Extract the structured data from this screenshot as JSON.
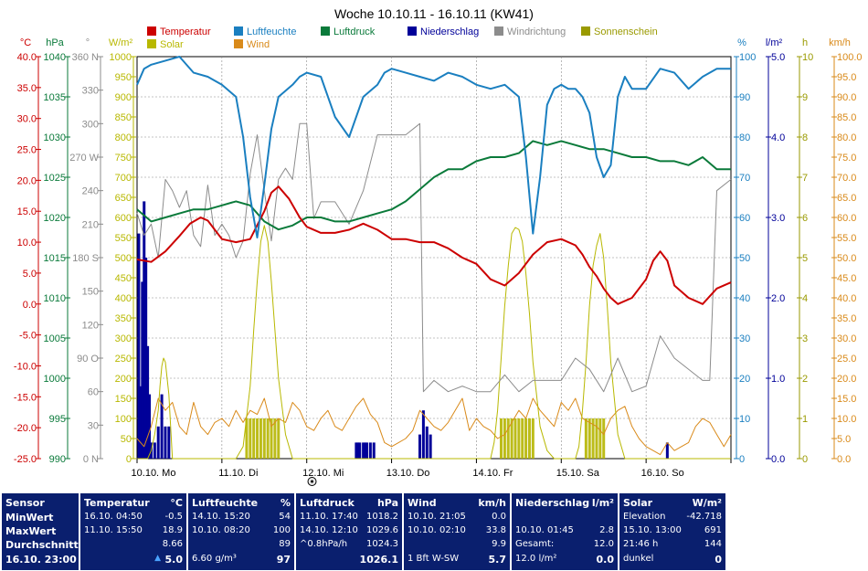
{
  "chart_data": {
    "type": "line",
    "title": "Woche 10.10.11 - 16.10.11 (KW41)",
    "x_ticks": [
      "10.10. Mo",
      "11.10. Di",
      "12.10. Mi",
      "13.10. Do",
      "14.10. Fr",
      "15.10. Sa",
      "16.10. So"
    ],
    "x_range_hours": [
      0,
      168
    ],
    "legend": [
      {
        "name": "Temperatur",
        "color": "#cc0000"
      },
      {
        "name": "Luftfeuchte",
        "color": "#1a7fc0"
      },
      {
        "name": "Luftdruck",
        "color": "#0a7a3a"
      },
      {
        "name": "Niederschlag",
        "color": "#000099"
      },
      {
        "name": "Windrichtung",
        "color": "#8c8c8c"
      },
      {
        "name": "Sonnenschein",
        "color": "#9a9a00"
      },
      {
        "name": "Solar",
        "color": "#b8b800"
      },
      {
        "name": "Wind",
        "color": "#d98a1a"
      }
    ],
    "axes": {
      "temp": {
        "unit": "°C",
        "range": [
          -25,
          40
        ],
        "ticks": [
          "40.0",
          "35.0",
          "30.0",
          "25.0",
          "20.0",
          "15.0",
          "10.0",
          "5.0",
          "0.0",
          "-5.0",
          "-10.0",
          "-15.0",
          "-20.0",
          "-25.0"
        ],
        "color": "#cc0000"
      },
      "pressure": {
        "unit": "hPa",
        "range": [
          990,
          1040
        ],
        "ticks": [
          "1040",
          "1035",
          "1030",
          "1025",
          "1020",
          "1015",
          "1010",
          "1005",
          "1000",
          "995",
          "990"
        ],
        "color": "#0a7a3a"
      },
      "direction": {
        "unit": "°",
        "range": [
          0,
          360
        ],
        "ticks": [
          "360 N",
          "330",
          "300",
          "270 W",
          "240",
          "210",
          "180 S",
          "150",
          "120",
          "90 O",
          "60",
          "30",
          "0 N"
        ],
        "color": "#8c8c8c"
      },
      "solar": {
        "unit": "W/m²",
        "range": [
          0,
          1000
        ],
        "ticks": [
          "1000",
          "950",
          "900",
          "850",
          "800",
          "750",
          "700",
          "650",
          "600",
          "550",
          "500",
          "450",
          "400",
          "350",
          "300",
          "250",
          "200",
          "150",
          "100",
          "50",
          "0"
        ],
        "color": "#b8b800"
      },
      "humidity": {
        "unit": "%",
        "range": [
          0,
          100
        ],
        "ticks": [
          "100",
          "90",
          "80",
          "70",
          "60",
          "50",
          "40",
          "30",
          "20",
          "10",
          "0"
        ],
        "color": "#1a7fc0"
      },
      "rain": {
        "unit": "l/m²",
        "range": [
          0,
          5
        ],
        "ticks": [
          "5.0",
          "4.0",
          "3.0",
          "2.0",
          "1.0",
          "0.0"
        ],
        "color": "#000099"
      },
      "sunshine": {
        "unit": "h",
        "range": [
          0,
          10
        ],
        "ticks": [
          "10",
          "9",
          "8",
          "7",
          "6",
          "5",
          "4",
          "3",
          "2",
          "1",
          "0"
        ],
        "color": "#9a9a00"
      },
      "wind": {
        "unit": "km/h",
        "range": [
          0,
          100
        ],
        "ticks": [
          "100.0",
          "95.0",
          "90.0",
          "85.0",
          "80.0",
          "75.0",
          "70.0",
          "65.0",
          "60.0",
          "55.0",
          "50.0",
          "45.0",
          "40.0",
          "35.0",
          "30.0",
          "25.0",
          "20.0",
          "15.0",
          "10.0",
          "5.0",
          "0.0"
        ],
        "color": "#d98a1a"
      }
    },
    "series": [
      {
        "name": "Temperatur",
        "axis": "temp",
        "x": [
          0,
          4,
          8,
          12,
          15,
          18,
          20,
          22,
          24,
          28,
          32,
          36,
          38,
          40,
          43,
          46,
          48,
          52,
          56,
          60,
          64,
          68,
          72,
          76,
          80,
          84,
          88,
          92,
          96,
          100,
          104,
          108,
          112,
          116,
          120,
          124,
          126,
          128,
          130,
          132,
          134,
          136,
          140,
          144,
          146,
          148,
          150,
          152,
          156,
          160,
          164,
          168
        ],
        "y": [
          7.2,
          6.8,
          8.5,
          11,
          13,
          14,
          13.5,
          12,
          10.5,
          10,
          10.5,
          15,
          18,
          19,
          17,
          14,
          12.5,
          11.5,
          11.5,
          12,
          13,
          12,
          10.5,
          10.5,
          10,
          10,
          9,
          7.5,
          6.5,
          4,
          3,
          5,
          8,
          10,
          10.5,
          9.5,
          8,
          6,
          4.5,
          2.5,
          1,
          0,
          1,
          4,
          7,
          8.5,
          7,
          3,
          1,
          0,
          2.5,
          3.5
        ]
      },
      {
        "name": "Luftfeuchte",
        "axis": "humidity",
        "x": [
          0,
          2,
          4,
          8,
          12,
          16,
          20,
          24,
          28,
          30,
          32,
          34,
          36,
          38,
          40,
          44,
          46,
          48,
          52,
          56,
          60,
          64,
          68,
          70,
          72,
          76,
          80,
          84,
          88,
          92,
          96,
          100,
          104,
          108,
          110,
          112,
          114,
          116,
          118,
          120,
          122,
          124,
          126,
          128,
          130,
          132,
          134,
          136,
          138,
          140,
          144,
          148,
          152,
          156,
          160,
          164,
          168
        ],
        "y": [
          93,
          97,
          98,
          99,
          100,
          96,
          95,
          93,
          90,
          80,
          65,
          55,
          68,
          82,
          90,
          93,
          95,
          96,
          95,
          85,
          80,
          90,
          93,
          96,
          97,
          96,
          95,
          94,
          96,
          95,
          93,
          92,
          93,
          90,
          75,
          56,
          70,
          88,
          92,
          93,
          92,
          92,
          90,
          86,
          75,
          70,
          73,
          90,
          95,
          92,
          92,
          97,
          96,
          92,
          95,
          97,
          97
        ]
      },
      {
        "name": "Luftdruck",
        "axis": "pressure",
        "x": [
          0,
          4,
          8,
          12,
          16,
          20,
          24,
          28,
          32,
          36,
          40,
          44,
          48,
          52,
          56,
          60,
          64,
          68,
          72,
          76,
          80,
          84,
          88,
          92,
          96,
          100,
          104,
          108,
          112,
          116,
          120,
          124,
          128,
          132,
          136,
          140,
          144,
          148,
          152,
          156,
          160,
          164,
          168
        ],
        "y": [
          1021,
          1019.5,
          1020,
          1020.5,
          1021,
          1021,
          1021.5,
          1022,
          1021.5,
          1019.5,
          1018.5,
          1019,
          1020,
          1020,
          1019.5,
          1019.5,
          1020,
          1020.5,
          1021,
          1022,
          1023.5,
          1025,
          1026,
          1026,
          1027,
          1027.5,
          1027.5,
          1028,
          1029.5,
          1029,
          1029.5,
          1029,
          1028.5,
          1028.5,
          1028,
          1027.5,
          1027.5,
          1027,
          1027,
          1026.5,
          1027.5,
          1026,
          1026
        ]
      },
      {
        "name": "Windrichtung",
        "axis": "direction",
        "x": [
          0,
          2,
          4,
          6,
          8,
          10,
          12,
          14,
          16,
          18,
          20,
          22,
          24,
          26,
          28,
          30,
          32,
          34,
          36,
          38,
          40,
          42,
          44,
          46,
          48,
          50,
          52,
          56,
          60,
          64,
          68,
          72,
          76,
          80,
          81,
          84,
          88,
          92,
          96,
          100,
          104,
          108,
          112,
          116,
          120,
          122,
          124,
          128,
          132,
          136,
          140,
          144,
          148,
          152,
          160,
          162,
          164,
          168
        ],
        "y": [
          220,
          200,
          210,
          180,
          250,
          240,
          225,
          240,
          200,
          190,
          245,
          200,
          210,
          200,
          180,
          195,
          255,
          290,
          240,
          195,
          250,
          260,
          250,
          300,
          300,
          215,
          230,
          230,
          210,
          240,
          290,
          290,
          290,
          300,
          60,
          70,
          60,
          65,
          60,
          60,
          75,
          60,
          70,
          70,
          70,
          80,
          90,
          80,
          60,
          90,
          60,
          65,
          110,
          90,
          70,
          70,
          240,
          250
        ]
      },
      {
        "name": "Solar",
        "axis": "solar",
        "x": [
          0,
          3,
          4,
          5,
          6,
          6.5,
          7,
          7.5,
          8,
          9,
          10,
          28,
          30,
          32,
          33,
          34,
          35,
          36,
          37,
          38,
          39,
          40,
          42,
          44,
          46,
          52,
          54,
          100,
          101,
          102,
          103,
          104,
          105,
          106,
          107,
          108,
          109,
          110,
          111,
          112,
          114,
          116,
          118,
          124,
          125,
          126,
          127,
          128,
          129,
          130,
          131,
          132,
          133,
          134,
          136,
          138,
          168
        ],
        "y": [
          0,
          0,
          20,
          60,
          120,
          180,
          230,
          250,
          240,
          160,
          0,
          0,
          30,
          180,
          320,
          440,
          540,
          580,
          540,
          440,
          320,
          200,
          60,
          0,
          0,
          0,
          0,
          0,
          40,
          120,
          250,
          380,
          480,
          560,
          575,
          570,
          540,
          460,
          360,
          240,
          80,
          20,
          0,
          0,
          30,
          120,
          240,
          380,
          480,
          530,
          560,
          500,
          380,
          240,
          60,
          0,
          0
        ]
      },
      {
        "name": "Wind",
        "axis": "wind",
        "x": [
          0,
          2,
          4,
          6,
          8,
          10,
          12,
          14,
          16,
          18,
          20,
          22,
          24,
          26,
          28,
          30,
          32,
          34,
          36,
          38,
          40,
          42,
          44,
          46,
          48,
          50,
          52,
          54,
          56,
          58,
          60,
          62,
          64,
          66,
          68,
          70,
          72,
          74,
          76,
          78,
          80,
          82,
          84,
          86,
          88,
          90,
          92,
          94,
          96,
          98,
          100,
          102,
          104,
          106,
          108,
          110,
          112,
          114,
          116,
          118,
          120,
          122,
          124,
          126,
          128,
          130,
          132,
          134,
          136,
          138,
          140,
          142,
          144,
          146,
          148,
          150,
          152,
          154,
          156,
          158,
          160,
          162,
          164,
          166,
          168
        ],
        "y": [
          5,
          3,
          8,
          15,
          12,
          14,
          8,
          6,
          14,
          8,
          6,
          9,
          10,
          8,
          12,
          9,
          12,
          11,
          15,
          8,
          10,
          9,
          14,
          12,
          8,
          7,
          10,
          12,
          8,
          7,
          10,
          13,
          15,
          11,
          9,
          4,
          3,
          4,
          5,
          7,
          12,
          10,
          8,
          7,
          9,
          12,
          15,
          7,
          10,
          8,
          7,
          5,
          6,
          9,
          12,
          10,
          15,
          12,
          10,
          8,
          14,
          12,
          15,
          10,
          9,
          8,
          6,
          10,
          12,
          13,
          8,
          5,
          3,
          2,
          1,
          4,
          2,
          3,
          4,
          8,
          10,
          9,
          6,
          3,
          6
        ]
      },
      {
        "name": "Niederschlag",
        "axis": "rain",
        "x": [
          0.5,
          1,
          1.5,
          2,
          2.5,
          3,
          3.5,
          4,
          5,
          6,
          7,
          8,
          9,
          62,
          62.5,
          63,
          64,
          64.5,
          65,
          66,
          67,
          80,
          81,
          82,
          83,
          150
        ],
        "y": [
          2.8,
          0.9,
          2.2,
          3.2,
          2.5,
          1.4,
          0.8,
          0.2,
          0.2,
          0.4,
          0.8,
          0.4,
          0.4,
          0.2,
          0.2,
          0.2,
          0.2,
          0.2,
          0.2,
          0.2,
          0.2,
          0.3,
          0.6,
          0.4,
          0.3,
          0.2
        ]
      },
      {
        "name": "Sonnenschein",
        "axis": "sunshine",
        "x": [
          31,
          32,
          33,
          34,
          35,
          36,
          37,
          38,
          39,
          40,
          103,
          104,
          105,
          106,
          107,
          108,
          109,
          110,
          111,
          112,
          127,
          128,
          129,
          130,
          131,
          132
        ],
        "y": [
          1,
          1,
          1,
          1,
          1,
          1,
          1,
          1,
          1,
          1,
          1,
          1,
          1,
          1,
          1,
          1,
          1,
          1,
          1,
          1,
          1,
          1,
          1,
          1,
          1,
          1
        ]
      }
    ]
  },
  "stats": {
    "sensor": {
      "header": "Sensor",
      "min_label": "MinWert",
      "max_label": "MaxWert",
      "avg_label": "Durchschnitt",
      "current_label": "16.10. 23:00"
    },
    "temperatur": {
      "header": "Temperatur",
      "unit": "°C",
      "min_time": "16.10.  04:50",
      "min_value": "-0.5",
      "max_time": "11.10.  15:50",
      "max_value": "18.9",
      "avg_value": "8.66",
      "trend_glyph": "▲",
      "current_value": "5.0"
    },
    "luftfeuchte": {
      "header": "Luftfeuchte",
      "unit": "%",
      "min_time": "14.10.  15:20",
      "min_value": "54",
      "max_time": "10.10.  08:20",
      "max_value": "100",
      "avg_value": "89",
      "abs_value": "6.60 g/m³",
      "current_value": "97"
    },
    "luftdruck": {
      "header": "Luftdruck",
      "unit": "hPa",
      "min_time": "11.10.  17:40",
      "min_value": "1018.2",
      "max_time": "14.10.  12:10",
      "max_value": "1029.6",
      "tendency": "^0.8hPa/h",
      "avg_value": "1024.3",
      "current_value": "1026.1"
    },
    "wind": {
      "header": "Wind",
      "unit": "km/h",
      "min_time": "10.10.  21:05",
      "min_value": "0.0",
      "max_time": "10.10.  02:10",
      "max_value": "33.8",
      "avg_value": "9.9",
      "bft_label": "1 Bft W-SW",
      "current_value": "5.7"
    },
    "niederschlag": {
      "header": "Niederschlag",
      "unit": "l/m²",
      "max_time": "10.10.  01:45",
      "max_value": "2.8",
      "total_label": "Gesamt:",
      "total_value": "12.0",
      "total_display": "12.0 l/m²",
      "current_value": "0.0"
    },
    "solar": {
      "header": "Solar",
      "unit": "W/m²",
      "elev_label": "Elevation",
      "elev_value": "-42.718",
      "max_time": "15.10.  13:00",
      "max_value": "691",
      "hours_value": "21:46 h",
      "hours_count": "144",
      "dark_label": "dunkel",
      "current_value": "0"
    }
  }
}
